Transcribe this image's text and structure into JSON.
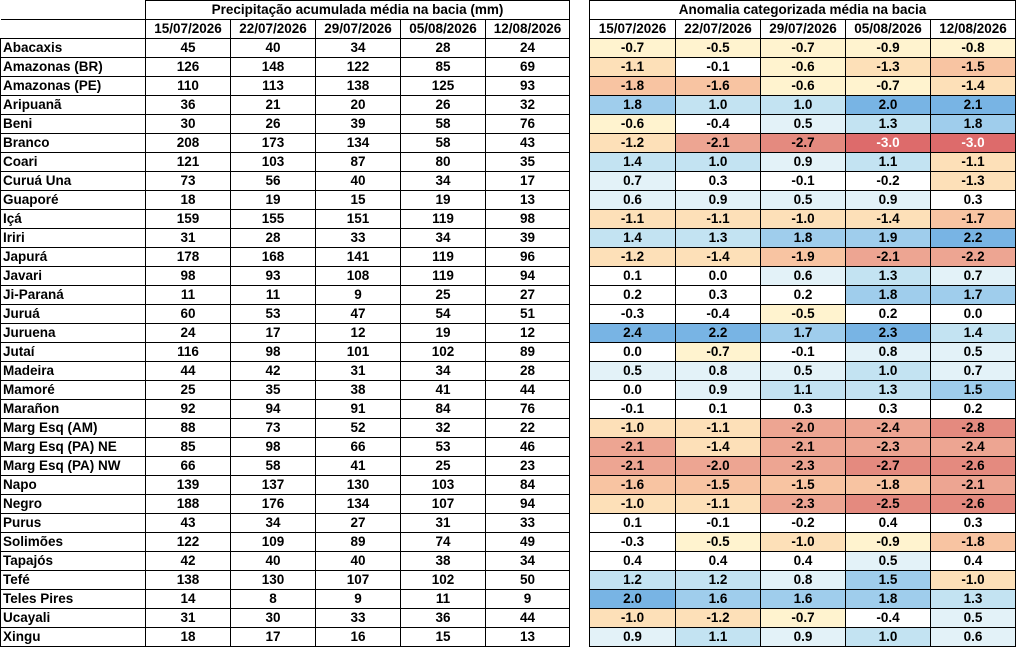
{
  "precip_title": "Precipitação acumulada média na bacia (mm)",
  "anom_title": "Anomalia categorizada média na bacia",
  "dates": [
    "15/07/2026",
    "22/07/2026",
    "29/07/2026",
    "05/08/2026",
    "12/08/2026"
  ],
  "rows": [
    {
      "name": "Abacaxis",
      "precip": [
        "45",
        "40",
        "34",
        "28",
        "24"
      ],
      "anom": [
        "-0.7",
        "-0.5",
        "-0.7",
        "-0.9",
        "-0.8"
      ]
    },
    {
      "name": "Amazonas (BR)",
      "precip": [
        "126",
        "148",
        "122",
        "85",
        "69"
      ],
      "anom": [
        "-1.1",
        "-0.1",
        "-0.6",
        "-1.3",
        "-1.5"
      ]
    },
    {
      "name": "Amazonas (PE)",
      "precip": [
        "110",
        "113",
        "138",
        "125",
        "93"
      ],
      "anom": [
        "-1.8",
        "-1.6",
        "-0.6",
        "-0.7",
        "-1.4"
      ]
    },
    {
      "name": "Aripuanã",
      "precip": [
        "36",
        "21",
        "20",
        "26",
        "32"
      ],
      "anom": [
        "1.8",
        "1.0",
        "1.0",
        "2.0",
        "2.1"
      ]
    },
    {
      "name": "Beni",
      "precip": [
        "30",
        "26",
        "39",
        "58",
        "76"
      ],
      "anom": [
        "-0.6",
        "-0.4",
        "0.5",
        "1.3",
        "1.8"
      ]
    },
    {
      "name": "Branco",
      "precip": [
        "208",
        "173",
        "134",
        "58",
        "43"
      ],
      "anom": [
        "-1.2",
        "-2.1",
        "-2.7",
        "-3.0",
        "-3.0"
      ]
    },
    {
      "name": "Coari",
      "precip": [
        "121",
        "103",
        "87",
        "80",
        "35"
      ],
      "anom": [
        "1.4",
        "1.0",
        "0.9",
        "1.1",
        "-1.1"
      ]
    },
    {
      "name": "Curuá Una",
      "precip": [
        "73",
        "56",
        "40",
        "34",
        "17"
      ],
      "anom": [
        "0.7",
        "0.3",
        "-0.1",
        "-0.2",
        "-1.3"
      ]
    },
    {
      "name": "Guaporé",
      "precip": [
        "18",
        "19",
        "15",
        "19",
        "13"
      ],
      "anom": [
        "0.6",
        "0.9",
        "0.5",
        "0.9",
        "0.3"
      ]
    },
    {
      "name": "Içá",
      "precip": [
        "159",
        "155",
        "151",
        "119",
        "98"
      ],
      "anom": [
        "-1.1",
        "-1.1",
        "-1.0",
        "-1.4",
        "-1.7"
      ]
    },
    {
      "name": "Iriri",
      "precip": [
        "31",
        "28",
        "33",
        "34",
        "39"
      ],
      "anom": [
        "1.4",
        "1.3",
        "1.8",
        "1.9",
        "2.2"
      ]
    },
    {
      "name": "Japurá",
      "precip": [
        "178",
        "168",
        "141",
        "119",
        "96"
      ],
      "anom": [
        "-1.2",
        "-1.4",
        "-1.9",
        "-2.1",
        "-2.2"
      ]
    },
    {
      "name": "Javari",
      "precip": [
        "98",
        "93",
        "108",
        "119",
        "94"
      ],
      "anom": [
        "0.1",
        "0.0",
        "0.6",
        "1.3",
        "0.7"
      ]
    },
    {
      "name": "Ji-Paraná",
      "precip": [
        "11",
        "11",
        "9",
        "25",
        "27"
      ],
      "anom": [
        "0.2",
        "0.3",
        "0.2",
        "1.8",
        "1.7"
      ]
    },
    {
      "name": "Juruá",
      "precip": [
        "60",
        "53",
        "47",
        "54",
        "51"
      ],
      "anom": [
        "-0.3",
        "-0.4",
        "-0.5",
        "0.2",
        "0.0"
      ]
    },
    {
      "name": "Juruena",
      "precip": [
        "24",
        "17",
        "12",
        "19",
        "12"
      ],
      "anom": [
        "2.4",
        "2.2",
        "1.7",
        "2.3",
        "1.4"
      ]
    },
    {
      "name": "Jutaí",
      "precip": [
        "116",
        "98",
        "101",
        "102",
        "89"
      ],
      "anom": [
        "0.0",
        "-0.7",
        "-0.1",
        "0.8",
        "0.5"
      ]
    },
    {
      "name": "Madeira",
      "precip": [
        "44",
        "42",
        "31",
        "34",
        "28"
      ],
      "anom": [
        "0.5",
        "0.8",
        "0.5",
        "1.0",
        "0.7"
      ]
    },
    {
      "name": "Mamoré",
      "precip": [
        "25",
        "35",
        "38",
        "41",
        "44"
      ],
      "anom": [
        "0.0",
        "0.9",
        "1.1",
        "1.3",
        "1.5"
      ]
    },
    {
      "name": "Marañon",
      "precip": [
        "92",
        "94",
        "91",
        "84",
        "76"
      ],
      "anom": [
        "-0.1",
        "0.1",
        "0.3",
        "0.3",
        "0.2"
      ]
    },
    {
      "name": "Marg Esq (AM)",
      "precip": [
        "88",
        "73",
        "52",
        "32",
        "22"
      ],
      "anom": [
        "-1.0",
        "-1.1",
        "-2.0",
        "-2.4",
        "-2.8"
      ]
    },
    {
      "name": "Marg Esq (PA) NE",
      "precip": [
        "85",
        "98",
        "66",
        "53",
        "46"
      ],
      "anom": [
        "-2.1",
        "-1.4",
        "-2.1",
        "-2.3",
        "-2.4"
      ]
    },
    {
      "name": "Marg Esq (PA) NW",
      "precip": [
        "66",
        "58",
        "41",
        "25",
        "23"
      ],
      "anom": [
        "-2.1",
        "-2.0",
        "-2.3",
        "-2.7",
        "-2.6"
      ]
    },
    {
      "name": "Napo",
      "precip": [
        "139",
        "137",
        "130",
        "103",
        "84"
      ],
      "anom": [
        "-1.6",
        "-1.5",
        "-1.5",
        "-1.8",
        "-2.1"
      ]
    },
    {
      "name": "Negro",
      "precip": [
        "188",
        "176",
        "134",
        "107",
        "94"
      ],
      "anom": [
        "-1.0",
        "-1.1",
        "-2.3",
        "-2.5",
        "-2.6"
      ]
    },
    {
      "name": "Purus",
      "precip": [
        "43",
        "34",
        "27",
        "31",
        "33"
      ],
      "anom": [
        "0.1",
        "-0.1",
        "-0.2",
        "0.4",
        "0.3"
      ]
    },
    {
      "name": "Solimões",
      "precip": [
        "122",
        "109",
        "89",
        "74",
        "49"
      ],
      "anom": [
        "-0.3",
        "-0.5",
        "-1.0",
        "-0.9",
        "-1.8"
      ]
    },
    {
      "name": "Tapajós",
      "precip": [
        "42",
        "40",
        "40",
        "38",
        "34"
      ],
      "anom": [
        "0.4",
        "0.4",
        "0.4",
        "0.5",
        "0.4"
      ]
    },
    {
      "name": "Tefé",
      "precip": [
        "138",
        "130",
        "107",
        "102",
        "50"
      ],
      "anom": [
        "1.2",
        "1.2",
        "0.8",
        "1.5",
        "-1.0"
      ]
    },
    {
      "name": "Teles Pires",
      "precip": [
        "14",
        "8",
        "9",
        "11",
        "9"
      ],
      "anom": [
        "2.0",
        "1.6",
        "1.6",
        "1.8",
        "1.3"
      ]
    },
    {
      "name": "Ucayali",
      "precip": [
        "31",
        "30",
        "33",
        "36",
        "44"
      ],
      "anom": [
        "-1.0",
        "-1.2",
        "-0.7",
        "-0.4",
        "0.5"
      ]
    },
    {
      "name": "Xingu",
      "precip": [
        "18",
        "17",
        "16",
        "15",
        "13"
      ],
      "anom": [
        "0.9",
        "1.1",
        "0.9",
        "1.0",
        "0.6"
      ]
    }
  ]
}
